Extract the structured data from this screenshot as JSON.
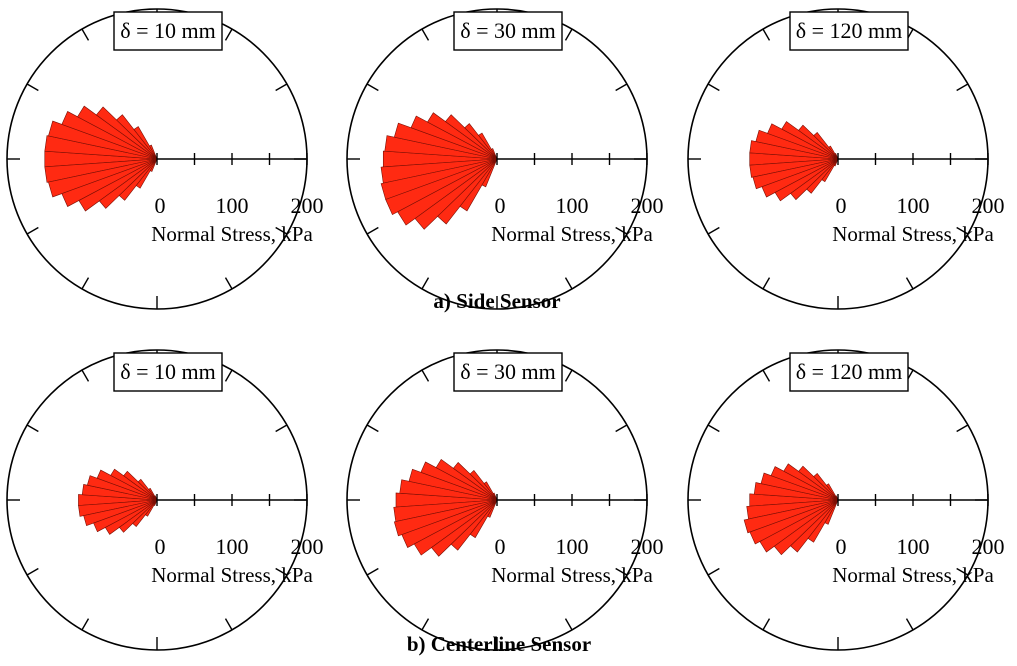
{
  "figure": {
    "row_titles": [
      "a) Side Sensor",
      "b) Centerline Sensor"
    ],
    "colors": {
      "wedge_fill": "#ff2a12",
      "wedge_edge": "#7a0f05",
      "axis": "#000000"
    }
  },
  "chart_data": [
    {
      "type": "polar-rose",
      "row": "a) Side Sensor",
      "panel_label": "δ = 10 mm",
      "xlabel": "Normal Stress, kPa",
      "tick_labels": [
        "0",
        "100",
        "200"
      ],
      "rlim": [
        0,
        200
      ],
      "angles_deg": [
        180,
        172,
        164,
        156,
        148,
        140,
        132,
        124,
        116,
        188,
        196,
        204,
        212,
        220,
        228,
        236,
        244
      ],
      "values": [
        150,
        150,
        148,
        135,
        120,
        100,
        75,
        50,
        20,
        150,
        148,
        135,
        118,
        95,
        70,
        45,
        18
      ]
    },
    {
      "type": "polar-rose",
      "row": "a) Side Sensor",
      "panel_label": "δ = 30 mm",
      "xlabel": "Normal Stress, kPa",
      "tick_labels": [
        "0",
        "100",
        "200"
      ],
      "rlim": [
        0,
        200
      ],
      "angles_deg": [
        180,
        172,
        164,
        156,
        148,
        140,
        132,
        124,
        116,
        188,
        196,
        204,
        212,
        220,
        228,
        236,
        244
      ],
      "values": [
        152,
        150,
        140,
        122,
        105,
        85,
        60,
        40,
        15,
        155,
        158,
        158,
        150,
        135,
        110,
        80,
        40
      ]
    },
    {
      "type": "polar-rose",
      "row": "a) Side Sensor",
      "panel_label": "δ = 120 mm",
      "xlabel": "Normal Stress, kPa",
      "tick_labels": [
        "0",
        "100",
        "200"
      ],
      "rlim": [
        0,
        200
      ],
      "angles_deg": [
        180,
        172,
        164,
        156,
        148,
        140,
        132,
        124,
        116,
        188,
        196,
        204,
        212,
        220,
        228,
        236,
        244
      ],
      "values": [
        118,
        118,
        112,
        100,
        85,
        65,
        45,
        20,
        8,
        118,
        116,
        108,
        95,
        78,
        58,
        35,
        10
      ]
    },
    {
      "type": "polar-rose",
      "row": "b) Centerline Sensor",
      "panel_label": "δ = 10 mm",
      "xlabel": "Normal Stress, kPa",
      "tick_labels": [
        "0",
        "100",
        "200"
      ],
      "rlim": [
        0,
        200
      ],
      "angles_deg": [
        180,
        172,
        164,
        156,
        148,
        140,
        132,
        124,
        116,
        188,
        196,
        204,
        212,
        220,
        228,
        236,
        244
      ],
      "values": [
        105,
        100,
        95,
        85,
        70,
        55,
        35,
        18,
        6,
        105,
        100,
        90,
        78,
        62,
        45,
        25,
        8
      ]
    },
    {
      "type": "polar-rose",
      "row": "b) Centerline Sensor",
      "panel_label": "δ = 30 mm",
      "xlabel": "Normal Stress, kPa",
      "tick_labels": [
        "0",
        "100",
        "200"
      ],
      "rlim": [
        0,
        200
      ],
      "angles_deg": [
        180,
        172,
        164,
        156,
        148,
        140,
        132,
        124,
        116,
        188,
        196,
        204,
        212,
        220,
        228,
        236,
        244
      ],
      "values": [
        135,
        130,
        120,
        108,
        92,
        72,
        50,
        28,
        10,
        138,
        140,
        135,
        125,
        108,
        85,
        58,
        25
      ]
    },
    {
      "type": "polar-rose",
      "row": "b) Centerline Sensor",
      "panel_label": "δ = 120 mm",
      "xlabel": "Normal Stress, kPa",
      "tick_labels": [
        "0",
        "100",
        "200"
      ],
      "rlim": [
        0,
        200
      ],
      "angles_deg": [
        180,
        172,
        164,
        156,
        148,
        140,
        132,
        124,
        116,
        188,
        196,
        204,
        212,
        220,
        228,
        236,
        244
      ],
      "values": [
        118,
        112,
        105,
        95,
        82,
        65,
        45,
        25,
        6,
        122,
        128,
        125,
        118,
        105,
        88,
        65,
        35
      ]
    }
  ]
}
